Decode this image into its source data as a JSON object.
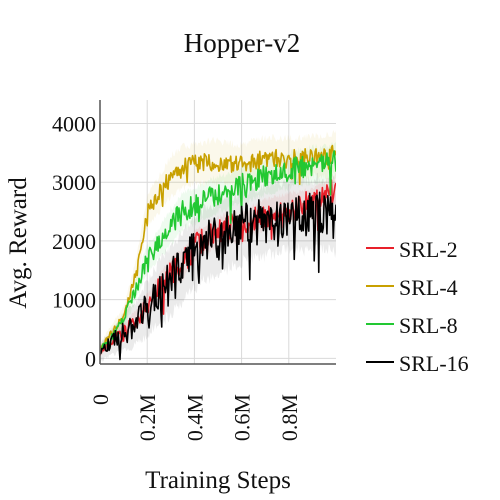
{
  "chart_data": {
    "type": "line",
    "title": "Hopper-v2",
    "xlabel": "Training Steps",
    "ylabel": "Avg. Reward",
    "xlim": [
      0,
      1000000
    ],
    "ylim": [
      -300,
      4400
    ],
    "x_ticks": [
      0,
      200000,
      400000,
      600000,
      800000
    ],
    "x_tick_labels": [
      "0",
      "0.2M",
      "0.4M",
      "0.6M",
      "0.8M"
    ],
    "y_ticks": [
      0,
      1000,
      2000,
      3000,
      4000
    ],
    "y_tick_labels": [
      "0",
      "1000",
      "2000",
      "3000",
      "4000"
    ],
    "grid": true,
    "legend_position": "right",
    "x": [
      0,
      50000,
      100000,
      150000,
      200000,
      250000,
      300000,
      350000,
      400000,
      450000,
      500000,
      550000,
      600000,
      650000,
      700000,
      750000,
      800000,
      850000,
      900000,
      950000,
      1000000
    ],
    "series": [
      {
        "name": "SRL-2",
        "color": "#e8202a",
        "values": [
          100,
          300,
          450,
          650,
          900,
          1200,
          1450,
          1600,
          1900,
          2050,
          2150,
          2250,
          2200,
          2350,
          2450,
          2500,
          2550,
          2600,
          2650,
          2750,
          2900
        ],
        "band": 250,
        "noise": 220
      },
      {
        "name": "SRL-4",
        "color": "#c8a000",
        "values": [
          150,
          450,
          700,
          1400,
          2500,
          2800,
          3100,
          3250,
          3300,
          3350,
          3350,
          3300,
          3300,
          3350,
          3400,
          3400,
          3400,
          3400,
          3450,
          3450,
          3500
        ],
        "band": 350,
        "noise": 160
      },
      {
        "name": "SRL-8",
        "color": "#22c832",
        "values": [
          150,
          350,
          650,
          1150,
          1700,
          1950,
          2250,
          2500,
          2600,
          2700,
          2800,
          2850,
          2950,
          3000,
          3100,
          3150,
          3200,
          3250,
          3300,
          3300,
          3350
        ],
        "band": 300,
        "noise": 200
      },
      {
        "name": "SRL-16",
        "color": "#000000",
        "values": [
          100,
          280,
          420,
          600,
          850,
          1100,
          1350,
          1550,
          1800,
          1950,
          2050,
          2150,
          2250,
          2300,
          2350,
          2400,
          2450,
          2450,
          2450,
          2450,
          2400
        ],
        "band": 600,
        "noise": 380
      }
    ]
  }
}
